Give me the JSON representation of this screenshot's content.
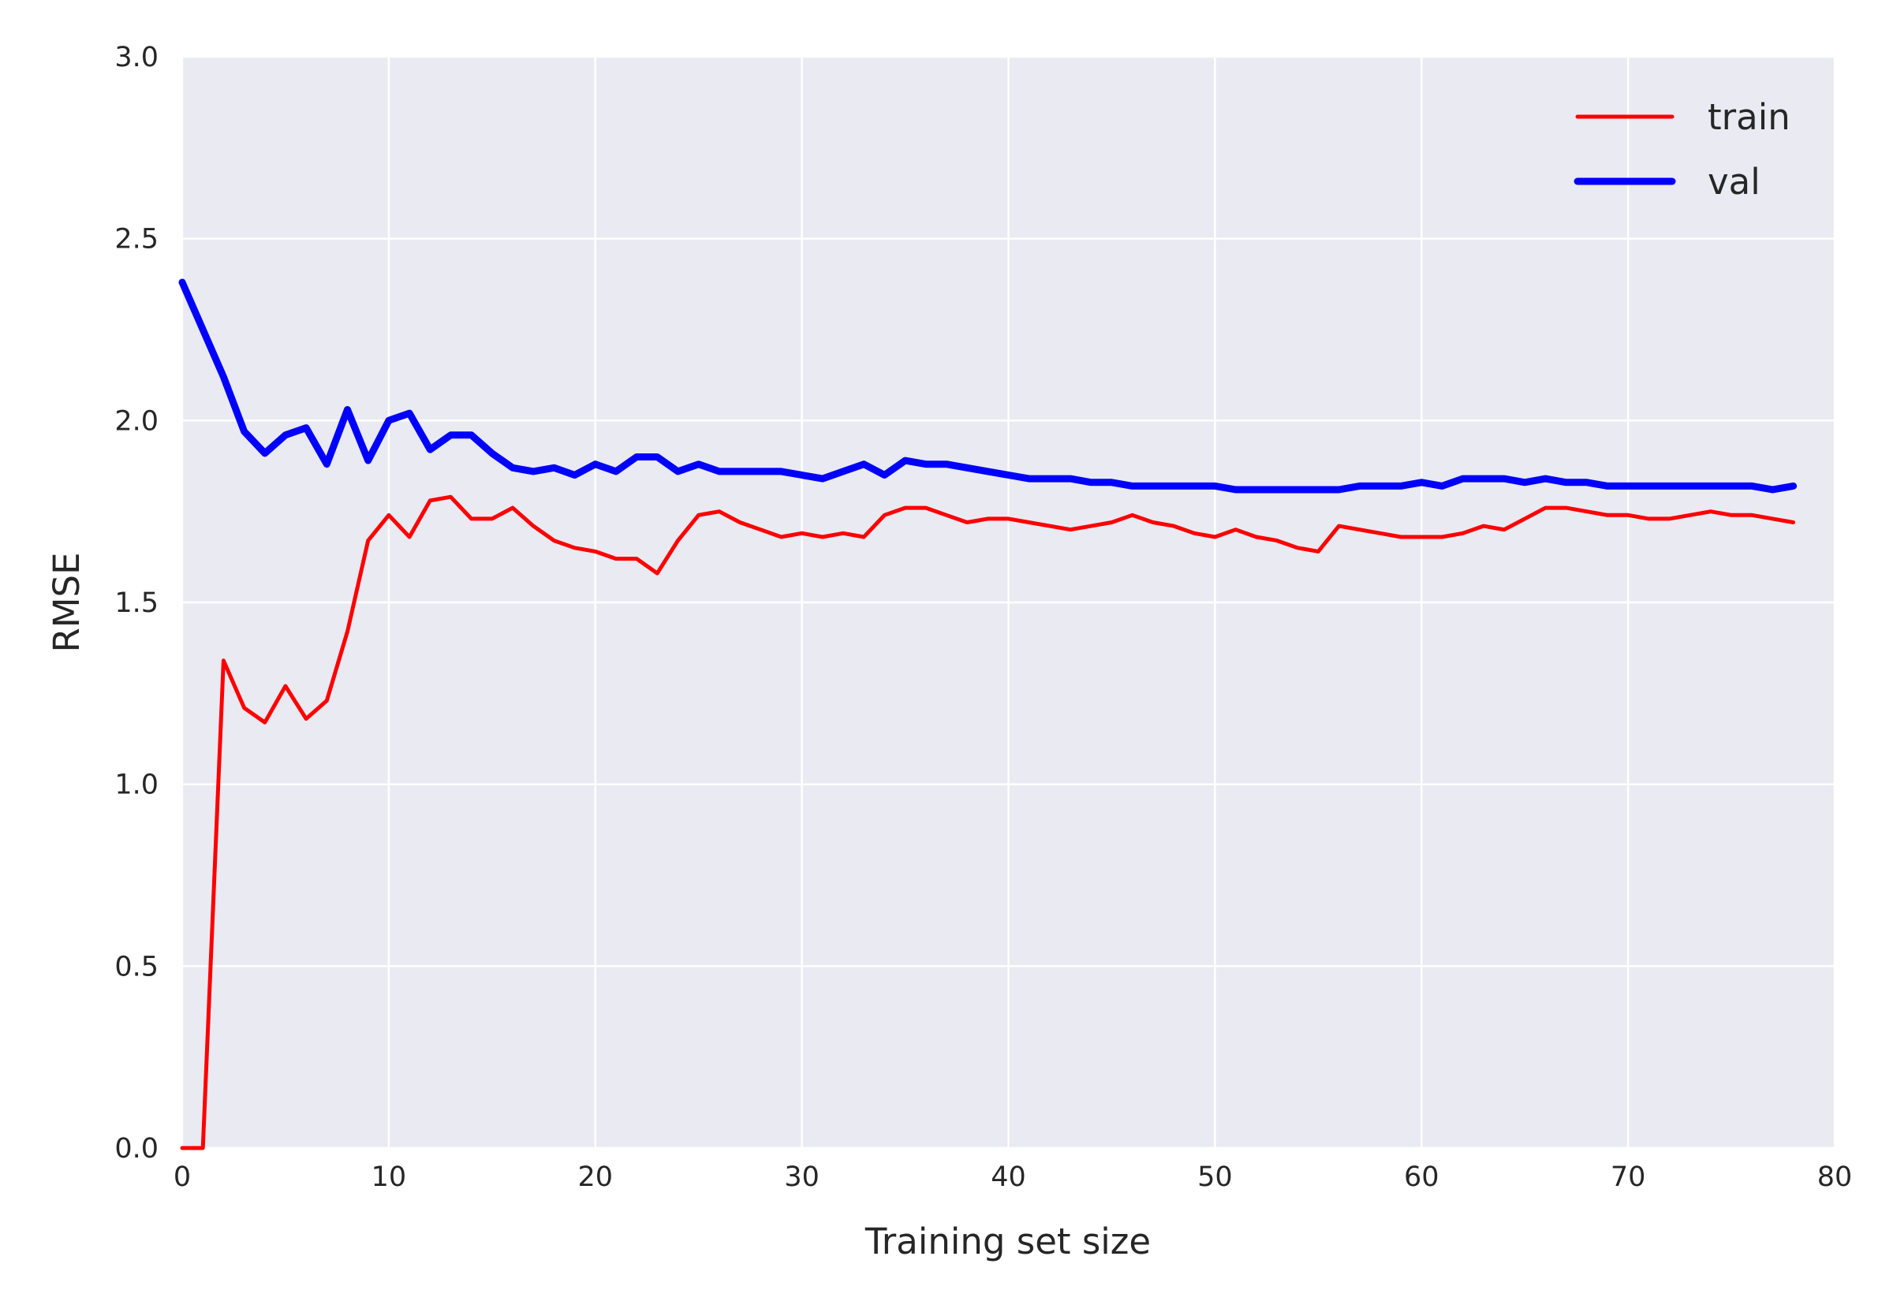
{
  "chart_data": {
    "type": "line",
    "title": "",
    "xlabel": "Training set size",
    "ylabel": "RMSE",
    "xlim": [
      0,
      80
    ],
    "ylim": [
      0,
      3.0
    ],
    "xticks": [
      0,
      10,
      20,
      30,
      40,
      50,
      60,
      70,
      80
    ],
    "xtick_labels": [
      "0",
      "10",
      "20",
      "30",
      "40",
      "50",
      "60",
      "70",
      "80"
    ],
    "yticks": [
      0,
      0.5,
      1.0,
      1.5,
      2.0,
      2.5,
      3.0
    ],
    "ytick_labels": [
      "0.0",
      "0.5",
      "1.0",
      "1.5",
      "2.0",
      "2.5",
      "3.0"
    ],
    "grid": true,
    "legend_position": "top-right",
    "background_color": "#eaeaf2",
    "x": [
      0,
      1,
      2,
      3,
      4,
      5,
      6,
      7,
      8,
      9,
      10,
      11,
      12,
      13,
      14,
      15,
      16,
      17,
      18,
      19,
      20,
      21,
      22,
      23,
      24,
      25,
      26,
      27,
      28,
      29,
      30,
      31,
      32,
      33,
      34,
      35,
      36,
      37,
      38,
      39,
      40,
      41,
      42,
      43,
      44,
      45,
      46,
      47,
      48,
      49,
      50,
      51,
      52,
      53,
      54,
      55,
      56,
      57,
      58,
      59,
      60,
      61,
      62,
      63,
      64,
      65,
      66,
      67,
      68,
      69,
      70,
      71,
      72,
      73,
      74,
      75,
      76,
      77,
      78
    ],
    "series": [
      {
        "name": "train",
        "color": "#ff0000",
        "style": "thin",
        "values": [
          0.0,
          0.0,
          1.34,
          1.21,
          1.17,
          1.27,
          1.18,
          1.23,
          1.42,
          1.67,
          1.74,
          1.68,
          1.78,
          1.79,
          1.73,
          1.73,
          1.76,
          1.71,
          1.67,
          1.65,
          1.64,
          1.62,
          1.62,
          1.58,
          1.67,
          1.74,
          1.75,
          1.72,
          1.7,
          1.68,
          1.69,
          1.68,
          1.69,
          1.68,
          1.74,
          1.76,
          1.76,
          1.74,
          1.72,
          1.73,
          1.73,
          1.72,
          1.71,
          1.7,
          1.71,
          1.72,
          1.74,
          1.72,
          1.71,
          1.69,
          1.68,
          1.7,
          1.68,
          1.67,
          1.65,
          1.64,
          1.71,
          1.7,
          1.69,
          1.68,
          1.68,
          1.68,
          1.69,
          1.71,
          1.7,
          1.73,
          1.76,
          1.76,
          1.75,
          1.74,
          1.74,
          1.73,
          1.73,
          1.74,
          1.75,
          1.74,
          1.74,
          1.73,
          1.72
        ]
      },
      {
        "name": "val",
        "color": "#0000ff",
        "style": "thick",
        "values": [
          2.38,
          2.25,
          2.12,
          1.97,
          1.91,
          1.96,
          1.98,
          1.88,
          2.03,
          1.89,
          2.0,
          2.02,
          1.92,
          1.96,
          1.96,
          1.91,
          1.87,
          1.86,
          1.87,
          1.85,
          1.88,
          1.86,
          1.9,
          1.9,
          1.86,
          1.88,
          1.86,
          1.86,
          1.86,
          1.86,
          1.85,
          1.84,
          1.86,
          1.88,
          1.85,
          1.89,
          1.88,
          1.88,
          1.87,
          1.86,
          1.85,
          1.84,
          1.84,
          1.84,
          1.83,
          1.83,
          1.82,
          1.82,
          1.82,
          1.82,
          1.82,
          1.81,
          1.81,
          1.81,
          1.81,
          1.81,
          1.81,
          1.82,
          1.82,
          1.82,
          1.83,
          1.82,
          1.84,
          1.84,
          1.84,
          1.83,
          1.84,
          1.83,
          1.83,
          1.82,
          1.82,
          1.82,
          1.82,
          1.82,
          1.82,
          1.82,
          1.82,
          1.81,
          1.82
        ]
      }
    ]
  }
}
